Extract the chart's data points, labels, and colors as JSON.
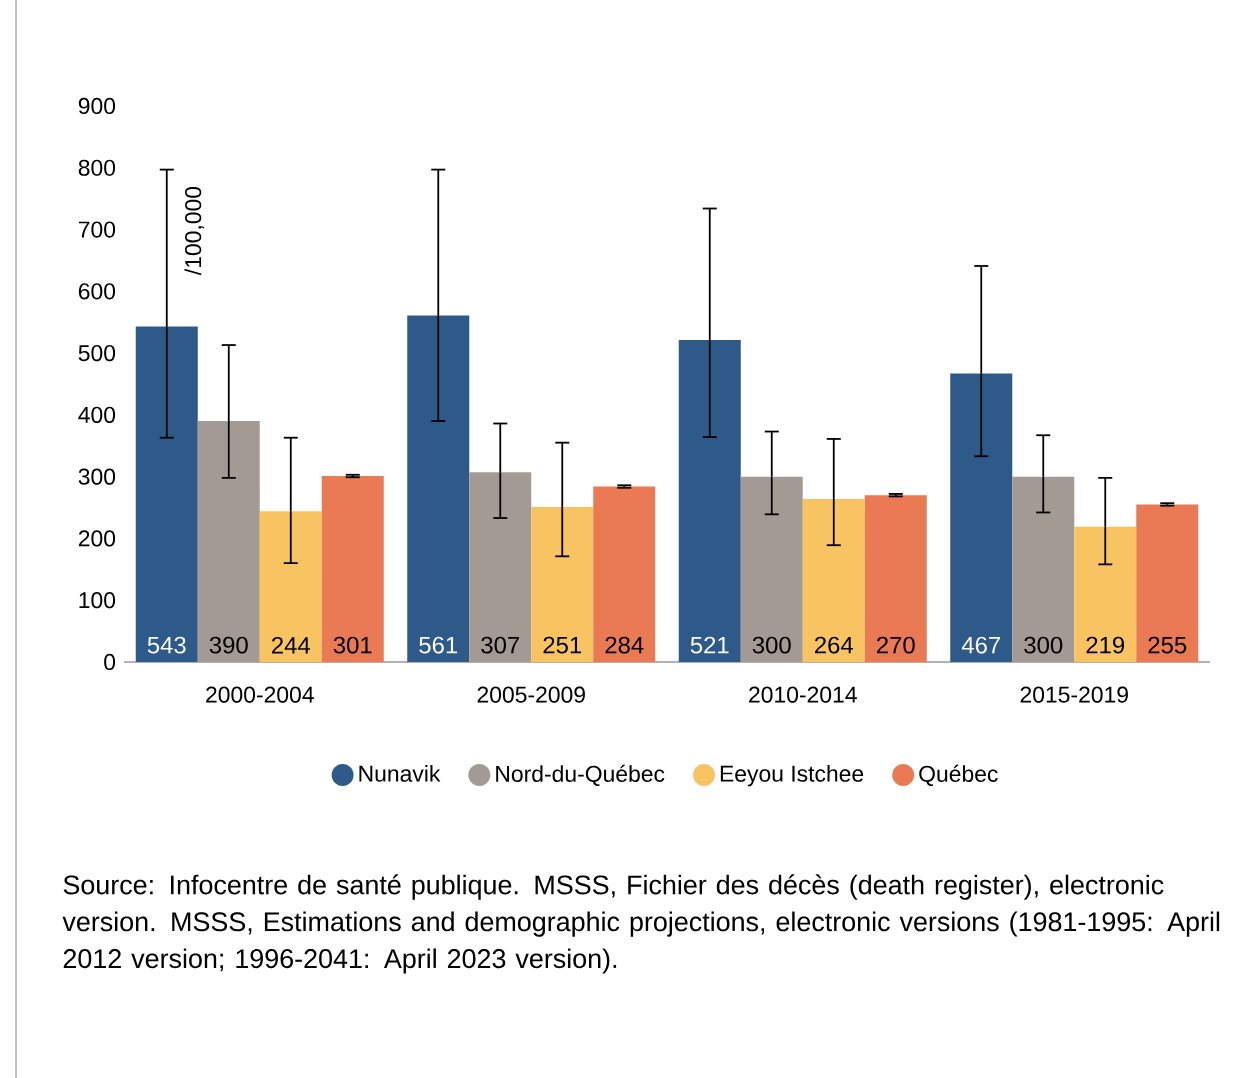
{
  "chart_data": {
    "type": "bar",
    "ylabel": "/100,000",
    "categories": [
      "2000-2004",
      "2005-2009",
      "2010-2014",
      "2015-2019"
    ],
    "ylim": [
      0,
      900
    ],
    "yticks": [
      0,
      100,
      200,
      300,
      400,
      500,
      600,
      700,
      800,
      900
    ],
    "legend": "bottom",
    "data_labels": true,
    "series": [
      {
        "name": "Nunavik",
        "color": "#2e5a8a",
        "values": [
          543,
          561,
          521,
          467
        ],
        "errors": [
          [
            363,
            797
          ],
          [
            390,
            797
          ],
          [
            364,
            734
          ],
          [
            333,
            641
          ]
        ]
      },
      {
        "name": "Nord-du-Québec",
        "color": "#a39a94",
        "values": [
          390,
          307,
          300,
          300
        ],
        "errors": [
          [
            298,
            513
          ],
          [
            233,
            386
          ],
          [
            239,
            373
          ],
          [
            242,
            367
          ]
        ]
      },
      {
        "name": "Eeyou Istchee",
        "color": "#f8c462",
        "values": [
          244,
          251,
          264,
          219
        ],
        "errors": [
          [
            160,
            363
          ],
          [
            171,
            355
          ],
          [
            189,
            361
          ],
          [
            158,
            298
          ]
        ]
      },
      {
        "name": "Québec",
        "color": "#ea7a53",
        "values": [
          301,
          284,
          270,
          255
        ],
        "errors": [
          [
            299,
            303
          ],
          [
            282,
            286
          ],
          [
            268,
            272
          ],
          [
            253,
            257
          ]
        ]
      }
    ],
    "annotations": [
      "Source: Infocentre de santé publique. MSSS, Fichier des décès (death register), electronic version. MSSS, Estimations and demographic projections, electronic versions (1981-1995: April 2012 version; 1996-2041: April 2023 version)."
    ]
  }
}
